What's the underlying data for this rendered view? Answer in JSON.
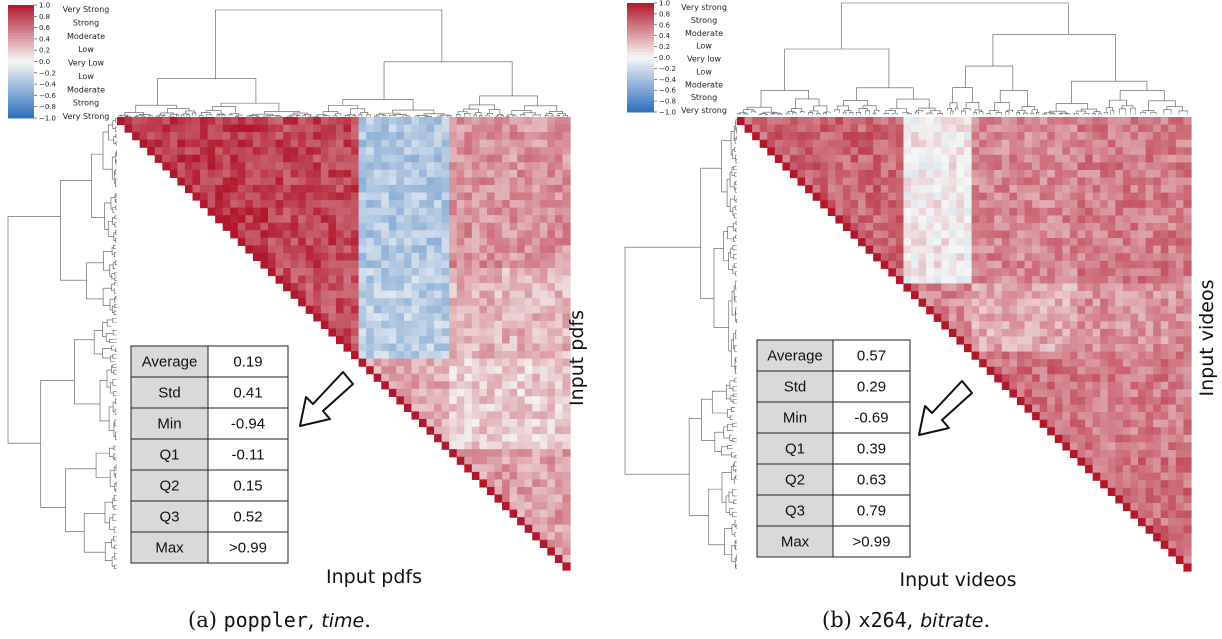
{
  "chart_data": [
    {
      "type": "heatmap",
      "caption": {
        "prefix": "(a)",
        "software": "poppler",
        "metric": "time"
      },
      "axis_label_bottom": "Input pdfs",
      "axis_label_right": "Input pdfs",
      "colorbar": {
        "range": [
          -1.0,
          1.0
        ],
        "ticks": [
          "1.0",
          "0.8",
          "0.6",
          "0.4",
          "0.2",
          "0.0",
          "−0.2",
          "−0.4",
          "−0.6",
          "−0.8",
          "−1.0"
        ],
        "labels": [
          "Very Strong",
          "Strong",
          "Moderate",
          "Low",
          "Very Low",
          "Low",
          "Moderate",
          "Strong",
          "Very Strong"
        ],
        "colors": {
          "high": "#b2182b",
          "mid": "#f7f7f7",
          "low": "#2c6fbb"
        }
      },
      "blocks": [
        0.33,
        0.21,
        0.2,
        0.26
      ],
      "block_means": [
        [
          0.85,
          0.8,
          -0.35,
          0.45
        ],
        [
          0.8,
          0.75,
          -0.3,
          0.3
        ],
        [
          -0.35,
          -0.3,
          0.35,
          0.2
        ],
        [
          0.45,
          0.3,
          0.2,
          0.4
        ]
      ],
      "stats_table": {
        "headers": [
          "Average",
          "Std",
          "Min",
          "Q1",
          "Q2",
          "Q3",
          "Max"
        ],
        "values": [
          "0.19",
          "0.41",
          "-0.94",
          "-0.11",
          "0.15",
          "0.52",
          ">0.99"
        ]
      }
    },
    {
      "type": "heatmap",
      "caption": {
        "prefix": "(b)",
        "software": "x264",
        "metric": "bitrate"
      },
      "axis_label_bottom": "Input videos",
      "axis_label_right": "Input videos",
      "colorbar": {
        "range": [
          -1.0,
          1.0
        ],
        "ticks": [
          "1.0",
          "0.8",
          "0.6",
          "0.4",
          "0.2",
          "0.0",
          "−0.2",
          "−0.4",
          "−0.6",
          "−0.8",
          "−1.0"
        ],
        "labels": [
          "Very strong",
          "Strong",
          "Moderate",
          "Low",
          "Very low",
          "Low",
          "Moderate",
          "Strong",
          "Very strong"
        ],
        "colors": {
          "high": "#b2182b",
          "mid": "#f7f7f7",
          "low": "#2c6fbb"
        }
      },
      "blocks": [
        0.36,
        0.16,
        0.23,
        0.25
      ],
      "block_means": [
        [
          0.65,
          0.05,
          0.5,
          0.55
        ],
        [
          0.05,
          0.5,
          0.35,
          0.45
        ],
        [
          0.5,
          0.35,
          0.6,
          0.55
        ],
        [
          0.55,
          0.45,
          0.55,
          0.6
        ]
      ],
      "stats_table": {
        "headers": [
          "Average",
          "Std",
          "Min",
          "Q1",
          "Q2",
          "Q3",
          "Max"
        ],
        "values": [
          "0.57",
          "0.29",
          "-0.69",
          "0.39",
          "0.63",
          "0.79",
          ">0.99"
        ]
      }
    }
  ]
}
